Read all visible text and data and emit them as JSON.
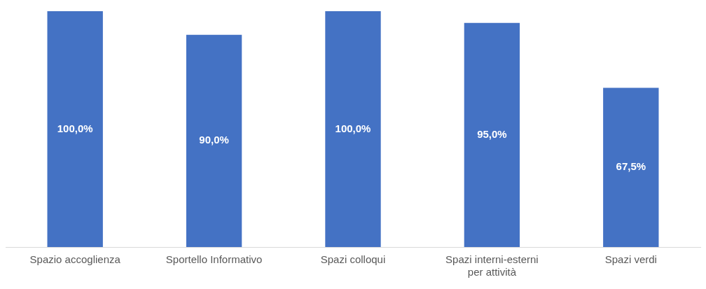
{
  "chart_data": {
    "type": "bar",
    "categories": [
      "Spazio accoglienza",
      "Sportello Informativo",
      "Spazi colloqui",
      "Spazi interni-esterni per attività",
      "Spazi verdi"
    ],
    "values": [
      100,
      90,
      100,
      95,
      67.5
    ],
    "color": "#4472c4",
    "value_labels": [
      "100,0%",
      "90,0%",
      "100,0%",
      "95,0%",
      "67,5%"
    ],
    "grid": false,
    "legend": false,
    "tick_labels": "x"
  }
}
